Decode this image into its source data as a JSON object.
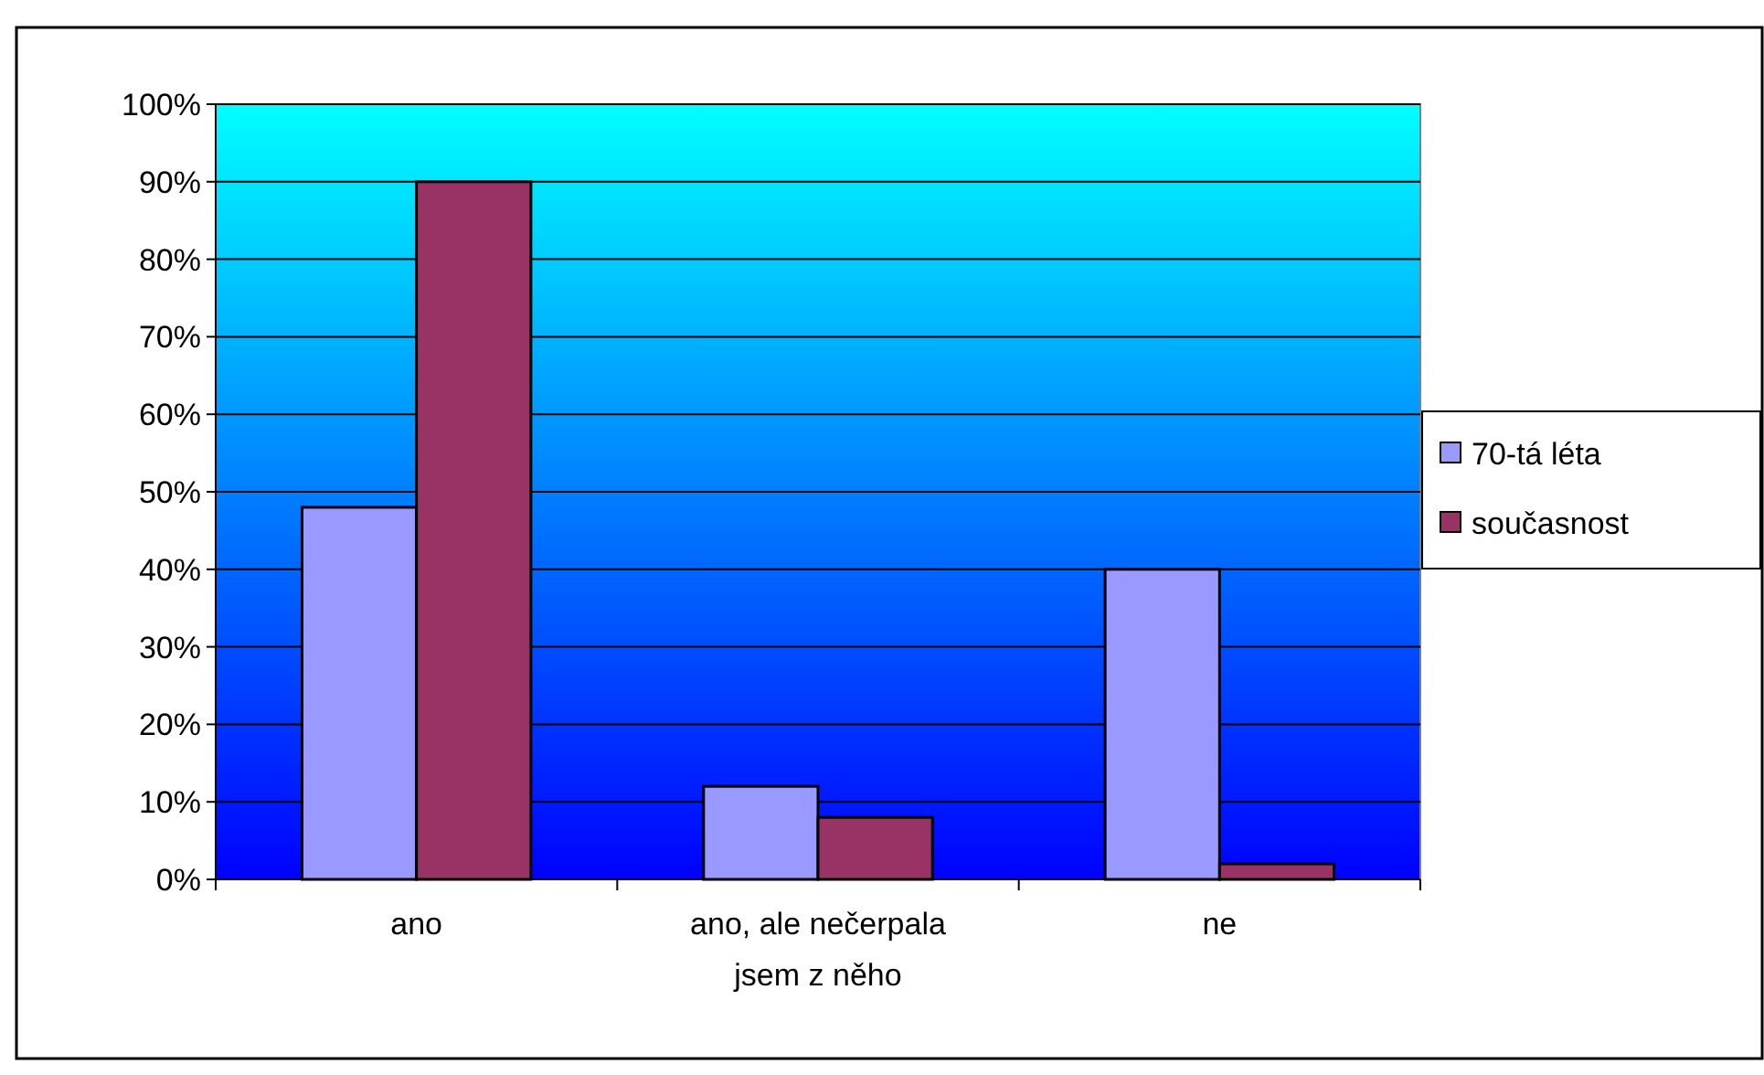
{
  "chart_data": {
    "type": "bar",
    "categories": [
      "ano",
      "ano, ale nečerpala jsem z něho",
      "ne"
    ],
    "series": [
      {
        "name": "70-tá léta",
        "color": "#9999ff",
        "values": [
          48,
          12,
          40
        ]
      },
      {
        "name": "současnost",
        "color": "#993366",
        "values": [
          90,
          8,
          2
        ]
      }
    ],
    "ylim": [
      0,
      100
    ],
    "yticks": [
      {
        "value": 0,
        "label": "0%"
      },
      {
        "value": 10,
        "label": "10%"
      },
      {
        "value": 20,
        "label": "20%"
      },
      {
        "value": 30,
        "label": "30%"
      },
      {
        "value": 40,
        "label": "40%"
      },
      {
        "value": 50,
        "label": "50%"
      },
      {
        "value": 60,
        "label": "60%"
      },
      {
        "value": 70,
        "label": "70%"
      },
      {
        "value": 80,
        "label": "80%"
      },
      {
        "value": 90,
        "label": "90%"
      },
      {
        "value": 100,
        "label": "100%"
      }
    ],
    "grid": "y",
    "legend": "right"
  }
}
